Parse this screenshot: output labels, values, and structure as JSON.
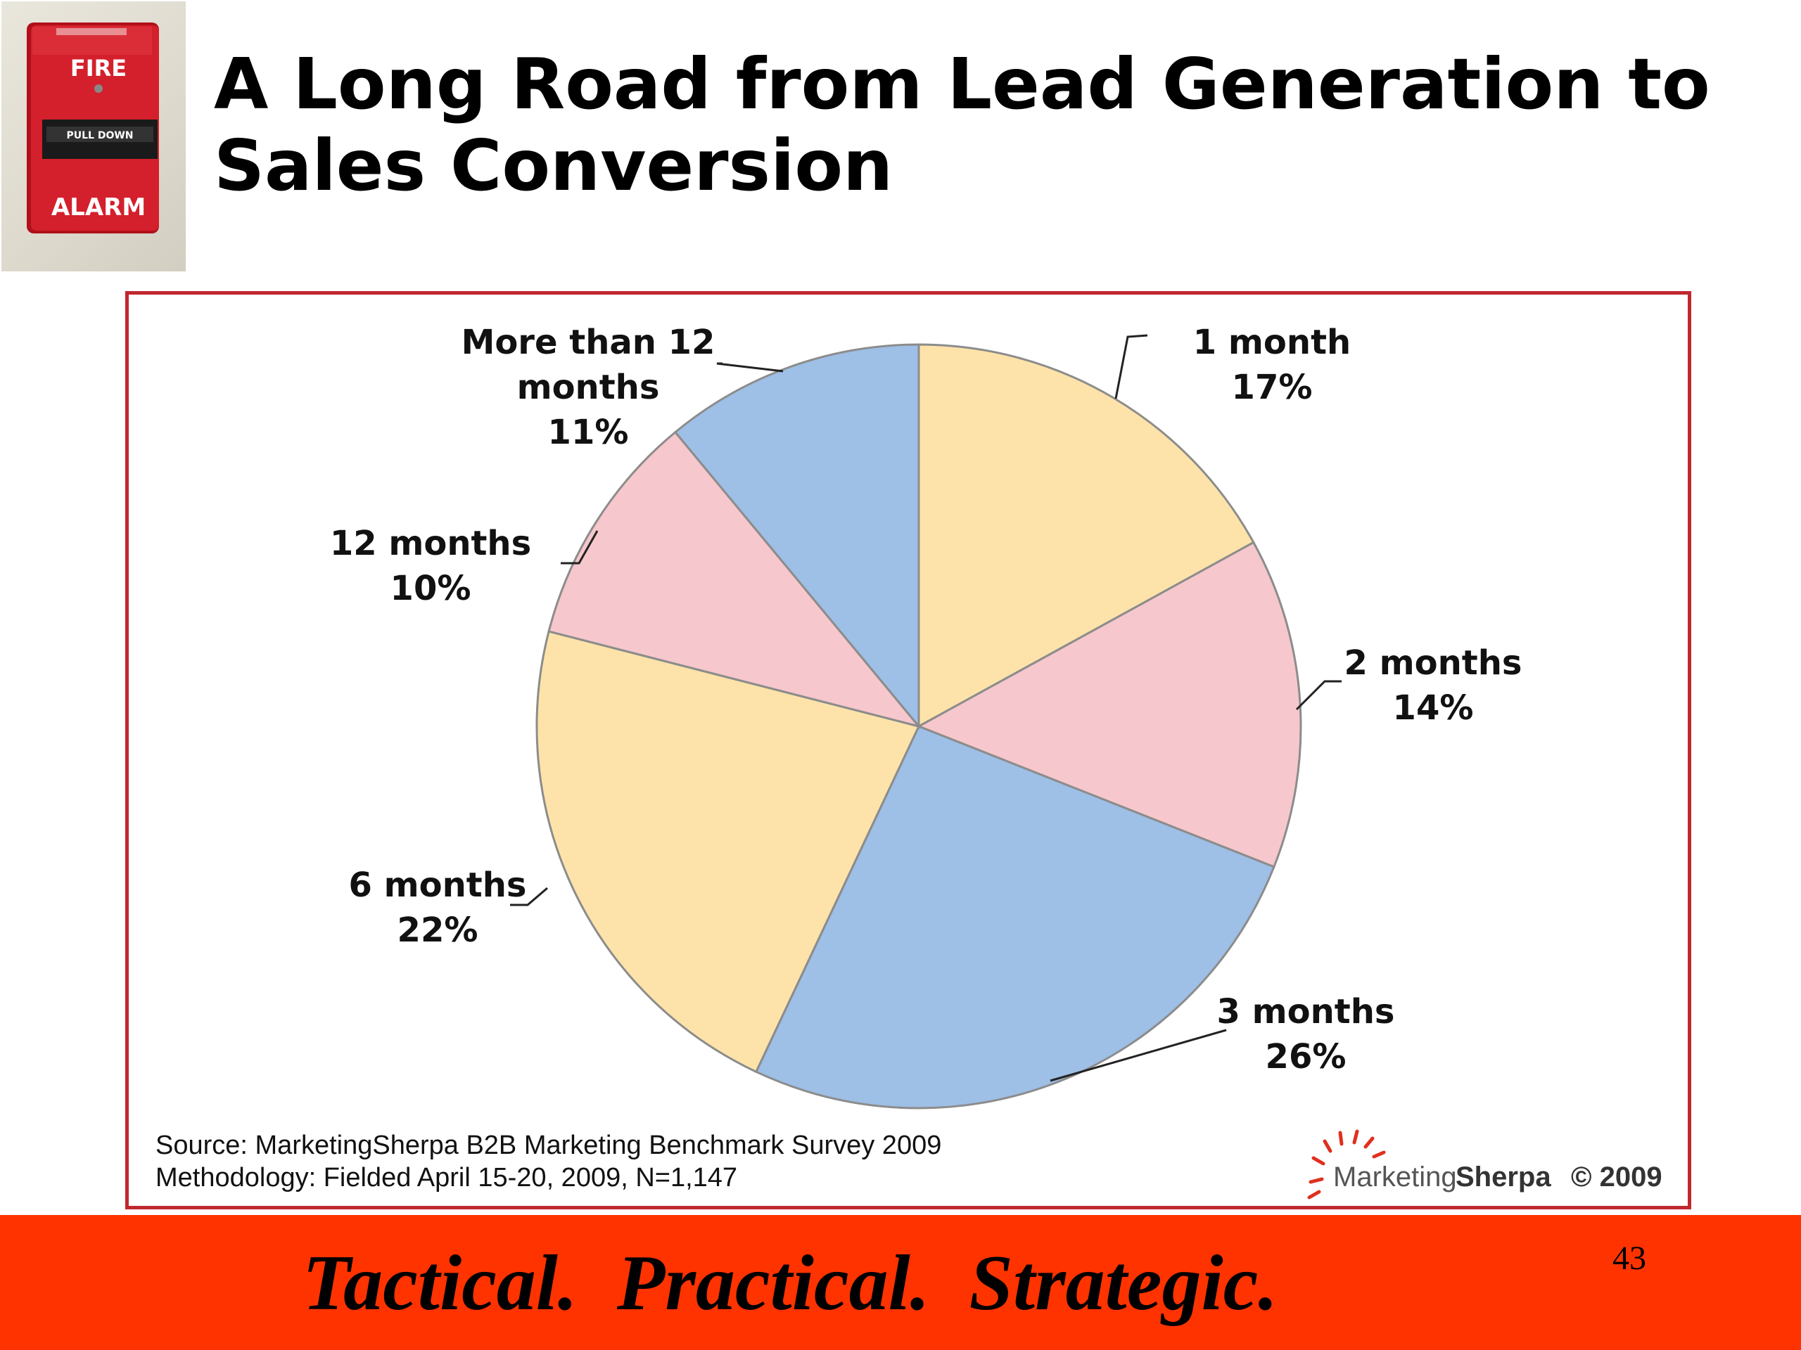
{
  "slide": {
    "title": "A Long Road from Lead Generation to Sales Conversion",
    "tagline": "Tactical.  Practical.  Strategic.",
    "page_number": "43"
  },
  "fire_alarm": {
    "icon": "fire-alarm-icon",
    "text_top": "FIRE",
    "text_middle": "PULL DOWN",
    "text_bottom": "ALARM"
  },
  "colors": {
    "title": "#000000",
    "frame_border": "#c0282f",
    "footer": "#ff3300",
    "slice_yellow": "#fde3a9",
    "slice_pink": "#f6c7cc",
    "slice_blue": "#9ebfe6"
  },
  "chart_data": {
    "type": "pie",
    "title": "",
    "slices": [
      {
        "label": "1 month",
        "value": 17,
        "display": "17%",
        "color": "#fde3a9"
      },
      {
        "label": "2 months",
        "value": 14,
        "display": "14%",
        "color": "#f6c7cc"
      },
      {
        "label": "3 months",
        "value": 26,
        "display": "26%",
        "color": "#9ebfe6"
      },
      {
        "label": "6 months",
        "value": 22,
        "display": "22%",
        "color": "#fde3a9"
      },
      {
        "label": "12 months",
        "value": 10,
        "display": "10%",
        "color": "#f6c7cc"
      },
      {
        "label": "More than 12 months",
        "label_lines": [
          "More than 12",
          "months"
        ],
        "value": 11,
        "display": "11%",
        "color": "#9ebfe6"
      }
    ],
    "start_position": "12 o'clock, clockwise",
    "legend": "none"
  },
  "source": {
    "line1": "Source: MarketingSherpa B2B Marketing Benchmark Survey 2009",
    "line2": "Methodology: Fielded  April 15-20, 2009, N=1,147"
  },
  "brand": {
    "icon": "sun-logo-icon",
    "marketing": "Marketing",
    "sherpa": "Sherpa",
    "copyright": "© 2009"
  }
}
